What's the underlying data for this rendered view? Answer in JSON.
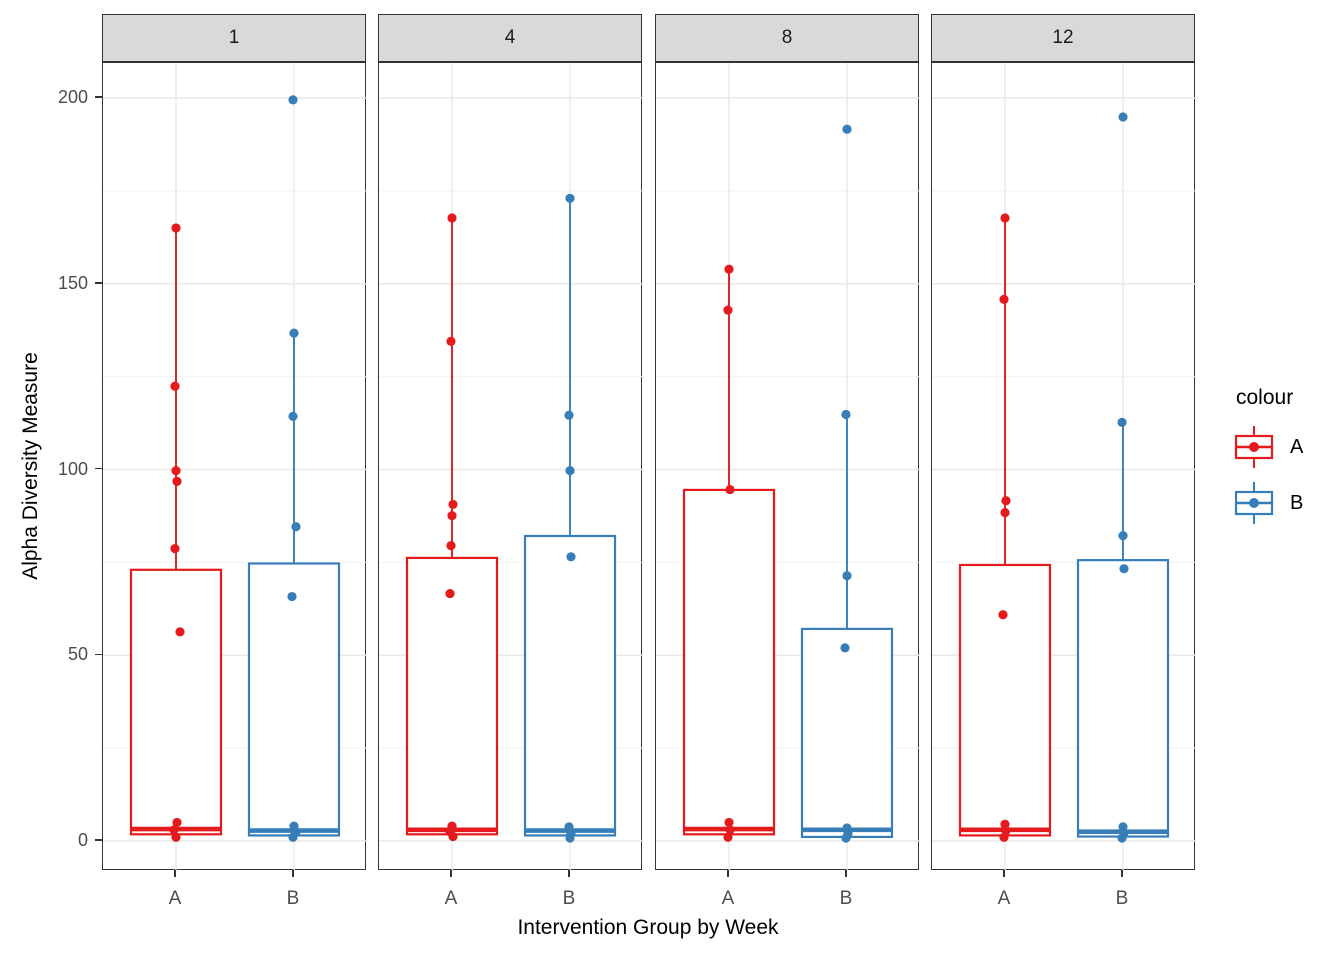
{
  "chart_data": {
    "type": "boxplot",
    "title": "",
    "facet_variable": "Week",
    "facet_labels": [
      "1",
      "4",
      "8",
      "12"
    ],
    "y_axis": {
      "label": "Alpha Diversity Measure",
      "ticks": [
        0,
        50,
        100,
        150,
        200
      ],
      "minor_gridlines": [
        25,
        75,
        125,
        175
      ],
      "range": [
        -8,
        209
      ],
      "grid": true
    },
    "x_axis": {
      "label": "Intervention Group by Week",
      "group_labels": [
        "A",
        "B"
      ]
    },
    "legend": {
      "title": "colour",
      "position": "right",
      "entries": [
        {
          "label": "A",
          "color": "#E41A1C"
        },
        {
          "label": "B",
          "color": "#377EB8"
        }
      ]
    },
    "colors": {
      "A": "#E41A1C",
      "B": "#377EB8",
      "strip_fill": "#D9D9D9",
      "panel_border": "#333333",
      "grid_major": "#E8E8E8",
      "grid_minor": "#F2F2F2",
      "tick_text": "#4D4D4D"
    },
    "facets": [
      {
        "label": "1",
        "groups": [
          {
            "name": "A",
            "color_key": "A",
            "box": {
              "whisker_low": 1.8,
              "q1": 1.8,
              "median": 3.2,
              "q3": 73.0,
              "whisker_high": 165.0
            },
            "points": [
              [
                165.0,
                0
              ],
              [
                122.4,
                -1
              ],
              [
                99.7,
                0
              ],
              [
                96.8,
                1
              ],
              [
                78.7,
                -1
              ],
              [
                56.3,
                4
              ],
              [
                5.0,
                1
              ],
              [
                3.0,
                -2
              ],
              [
                1.0,
                0
              ]
            ]
          },
          {
            "name": "B",
            "color_key": "B",
            "box": {
              "whisker_low": 1.5,
              "q1": 1.5,
              "median": 2.8,
              "q3": 74.7,
              "whisker_high": 136.7
            },
            "points": [
              [
                199.5,
                -1
              ],
              [
                136.7,
                0
              ],
              [
                114.3,
                -1
              ],
              [
                84.6,
                2
              ],
              [
                65.8,
                -2
              ],
              [
                4.0,
                0
              ],
              [
                2.5,
                2
              ],
              [
                1.0,
                -1
              ]
            ]
          }
        ]
      },
      {
        "label": "4",
        "groups": [
          {
            "name": "A",
            "color_key": "A",
            "box": {
              "whisker_low": 1.8,
              "q1": 1.8,
              "median": 3.0,
              "q3": 76.2,
              "whisker_high": 167.7
            },
            "points": [
              [
                167.7,
                0
              ],
              [
                134.5,
                -1
              ],
              [
                90.6,
                1
              ],
              [
                87.6,
                0
              ],
              [
                79.5,
                -1
              ],
              [
                66.6,
                -2
              ],
              [
                4.0,
                0
              ],
              [
                2.5,
                -2
              ],
              [
                1.2,
                1
              ]
            ]
          },
          {
            "name": "B",
            "color_key": "B",
            "box": {
              "whisker_low": 1.5,
              "q1": 1.5,
              "median": 2.8,
              "q3": 82.1,
              "whisker_high": 173.0
            },
            "points": [
              [
                173.0,
                0
              ],
              [
                114.6,
                -1
              ],
              [
                99.7,
                0
              ],
              [
                76.5,
                1
              ],
              [
                3.8,
                -1
              ],
              [
                2.0,
                1
              ],
              [
                0.8,
                0
              ]
            ]
          }
        ]
      },
      {
        "label": "8",
        "groups": [
          {
            "name": "A",
            "color_key": "A",
            "box": {
              "whisker_low": 1.8,
              "q1": 1.8,
              "median": 3.2,
              "q3": 94.5,
              "whisker_high": 153.9
            },
            "points": [
              [
                153.9,
                0
              ],
              [
                142.9,
                -1
              ],
              [
                94.6,
                1
              ],
              [
                5.0,
                0
              ],
              [
                3.0,
                1
              ],
              [
                1.0,
                -1
              ]
            ]
          },
          {
            "name": "B",
            "color_key": "B",
            "box": {
              "whisker_low": 1.1,
              "q1": 1.1,
              "median": 3.0,
              "q3": 57.1,
              "whisker_high": 114.8
            },
            "points": [
              [
                191.6,
                0
              ],
              [
                114.8,
                -1
              ],
              [
                71.4,
                0
              ],
              [
                52.0,
                -2
              ],
              [
                3.5,
                0
              ],
              [
                2.0,
                1
              ],
              [
                0.8,
                -1
              ]
            ]
          }
        ]
      },
      {
        "label": "12",
        "groups": [
          {
            "name": "A",
            "color_key": "A",
            "box": {
              "whisker_low": 1.5,
              "q1": 1.5,
              "median": 3.0,
              "q3": 74.3,
              "whisker_high": 167.7
            },
            "points": [
              [
                167.7,
                0
              ],
              [
                145.8,
                -1
              ],
              [
                91.6,
                1
              ],
              [
                88.4,
                0
              ],
              [
                60.9,
                -2
              ],
              [
                4.5,
                0
              ],
              [
                2.8,
                1
              ],
              [
                1.0,
                -1
              ]
            ]
          },
          {
            "name": "B",
            "color_key": "B",
            "box": {
              "whisker_low": 1.2,
              "q1": 1.2,
              "median": 2.5,
              "q3": 75.6,
              "whisker_high": 112.7
            },
            "points": [
              [
                194.9,
                0
              ],
              [
                112.7,
                -1
              ],
              [
                82.2,
                0
              ],
              [
                73.3,
                1
              ],
              [
                3.8,
                0
              ],
              [
                2.2,
                1
              ],
              [
                0.8,
                -1
              ]
            ]
          }
        ]
      }
    ]
  }
}
